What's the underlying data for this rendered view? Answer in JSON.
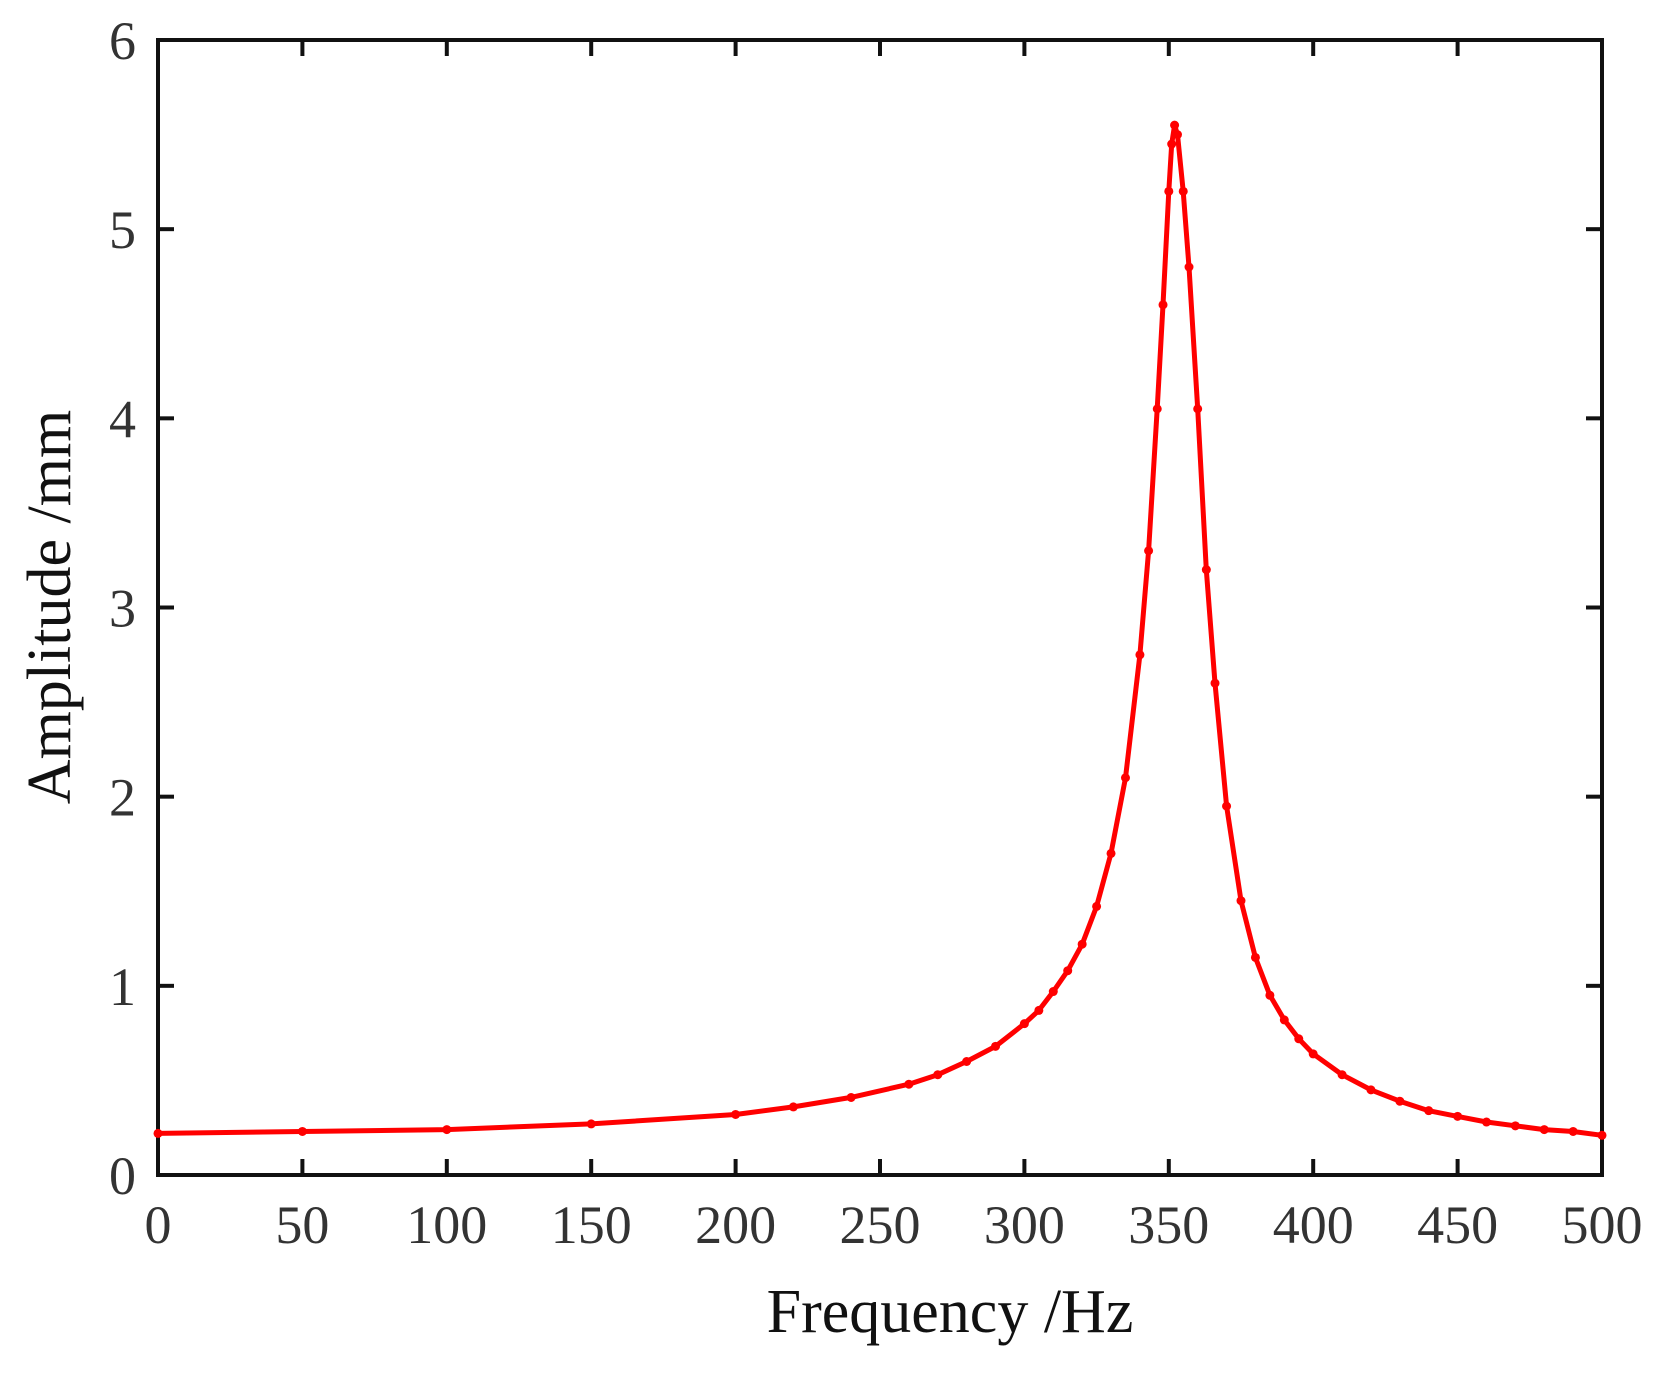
{
  "chart_data": {
    "type": "line",
    "title": "",
    "xlabel": "Frequency /Hz",
    "ylabel": "Amplitude /mm",
    "xlim": [
      0,
      500
    ],
    "ylim": [
      0,
      6
    ],
    "xticks": [
      "0",
      "50",
      "100",
      "150",
      "200",
      "250",
      "300",
      "350",
      "400",
      "450",
      "500"
    ],
    "yticks": [
      "0",
      "1",
      "2",
      "3",
      "4",
      "5",
      "6"
    ],
    "grid": false,
    "legend": "none",
    "series": [
      {
        "color": "#ff0000",
        "marker": "dot",
        "x": [
          0,
          50,
          100,
          150,
          200,
          220,
          240,
          260,
          270,
          280,
          290,
          300,
          305,
          310,
          315,
          320,
          325,
          330,
          335,
          340,
          343,
          346,
          348,
          350,
          351,
          352,
          353,
          355,
          357,
          360,
          363,
          366,
          370,
          375,
          380,
          385,
          390,
          395,
          400,
          410,
          420,
          430,
          440,
          450,
          460,
          470,
          480,
          490,
          500
        ],
        "y": [
          0.22,
          0.23,
          0.24,
          0.27,
          0.32,
          0.36,
          0.41,
          0.48,
          0.53,
          0.6,
          0.68,
          0.8,
          0.87,
          0.97,
          1.08,
          1.22,
          1.42,
          1.7,
          2.1,
          2.75,
          3.3,
          4.05,
          4.6,
          5.2,
          5.45,
          5.55,
          5.5,
          5.2,
          4.8,
          4.05,
          3.2,
          2.6,
          1.95,
          1.45,
          1.15,
          0.95,
          0.82,
          0.72,
          0.64,
          0.53,
          0.45,
          0.39,
          0.34,
          0.31,
          0.28,
          0.26,
          0.24,
          0.23,
          0.21
        ]
      }
    ]
  }
}
